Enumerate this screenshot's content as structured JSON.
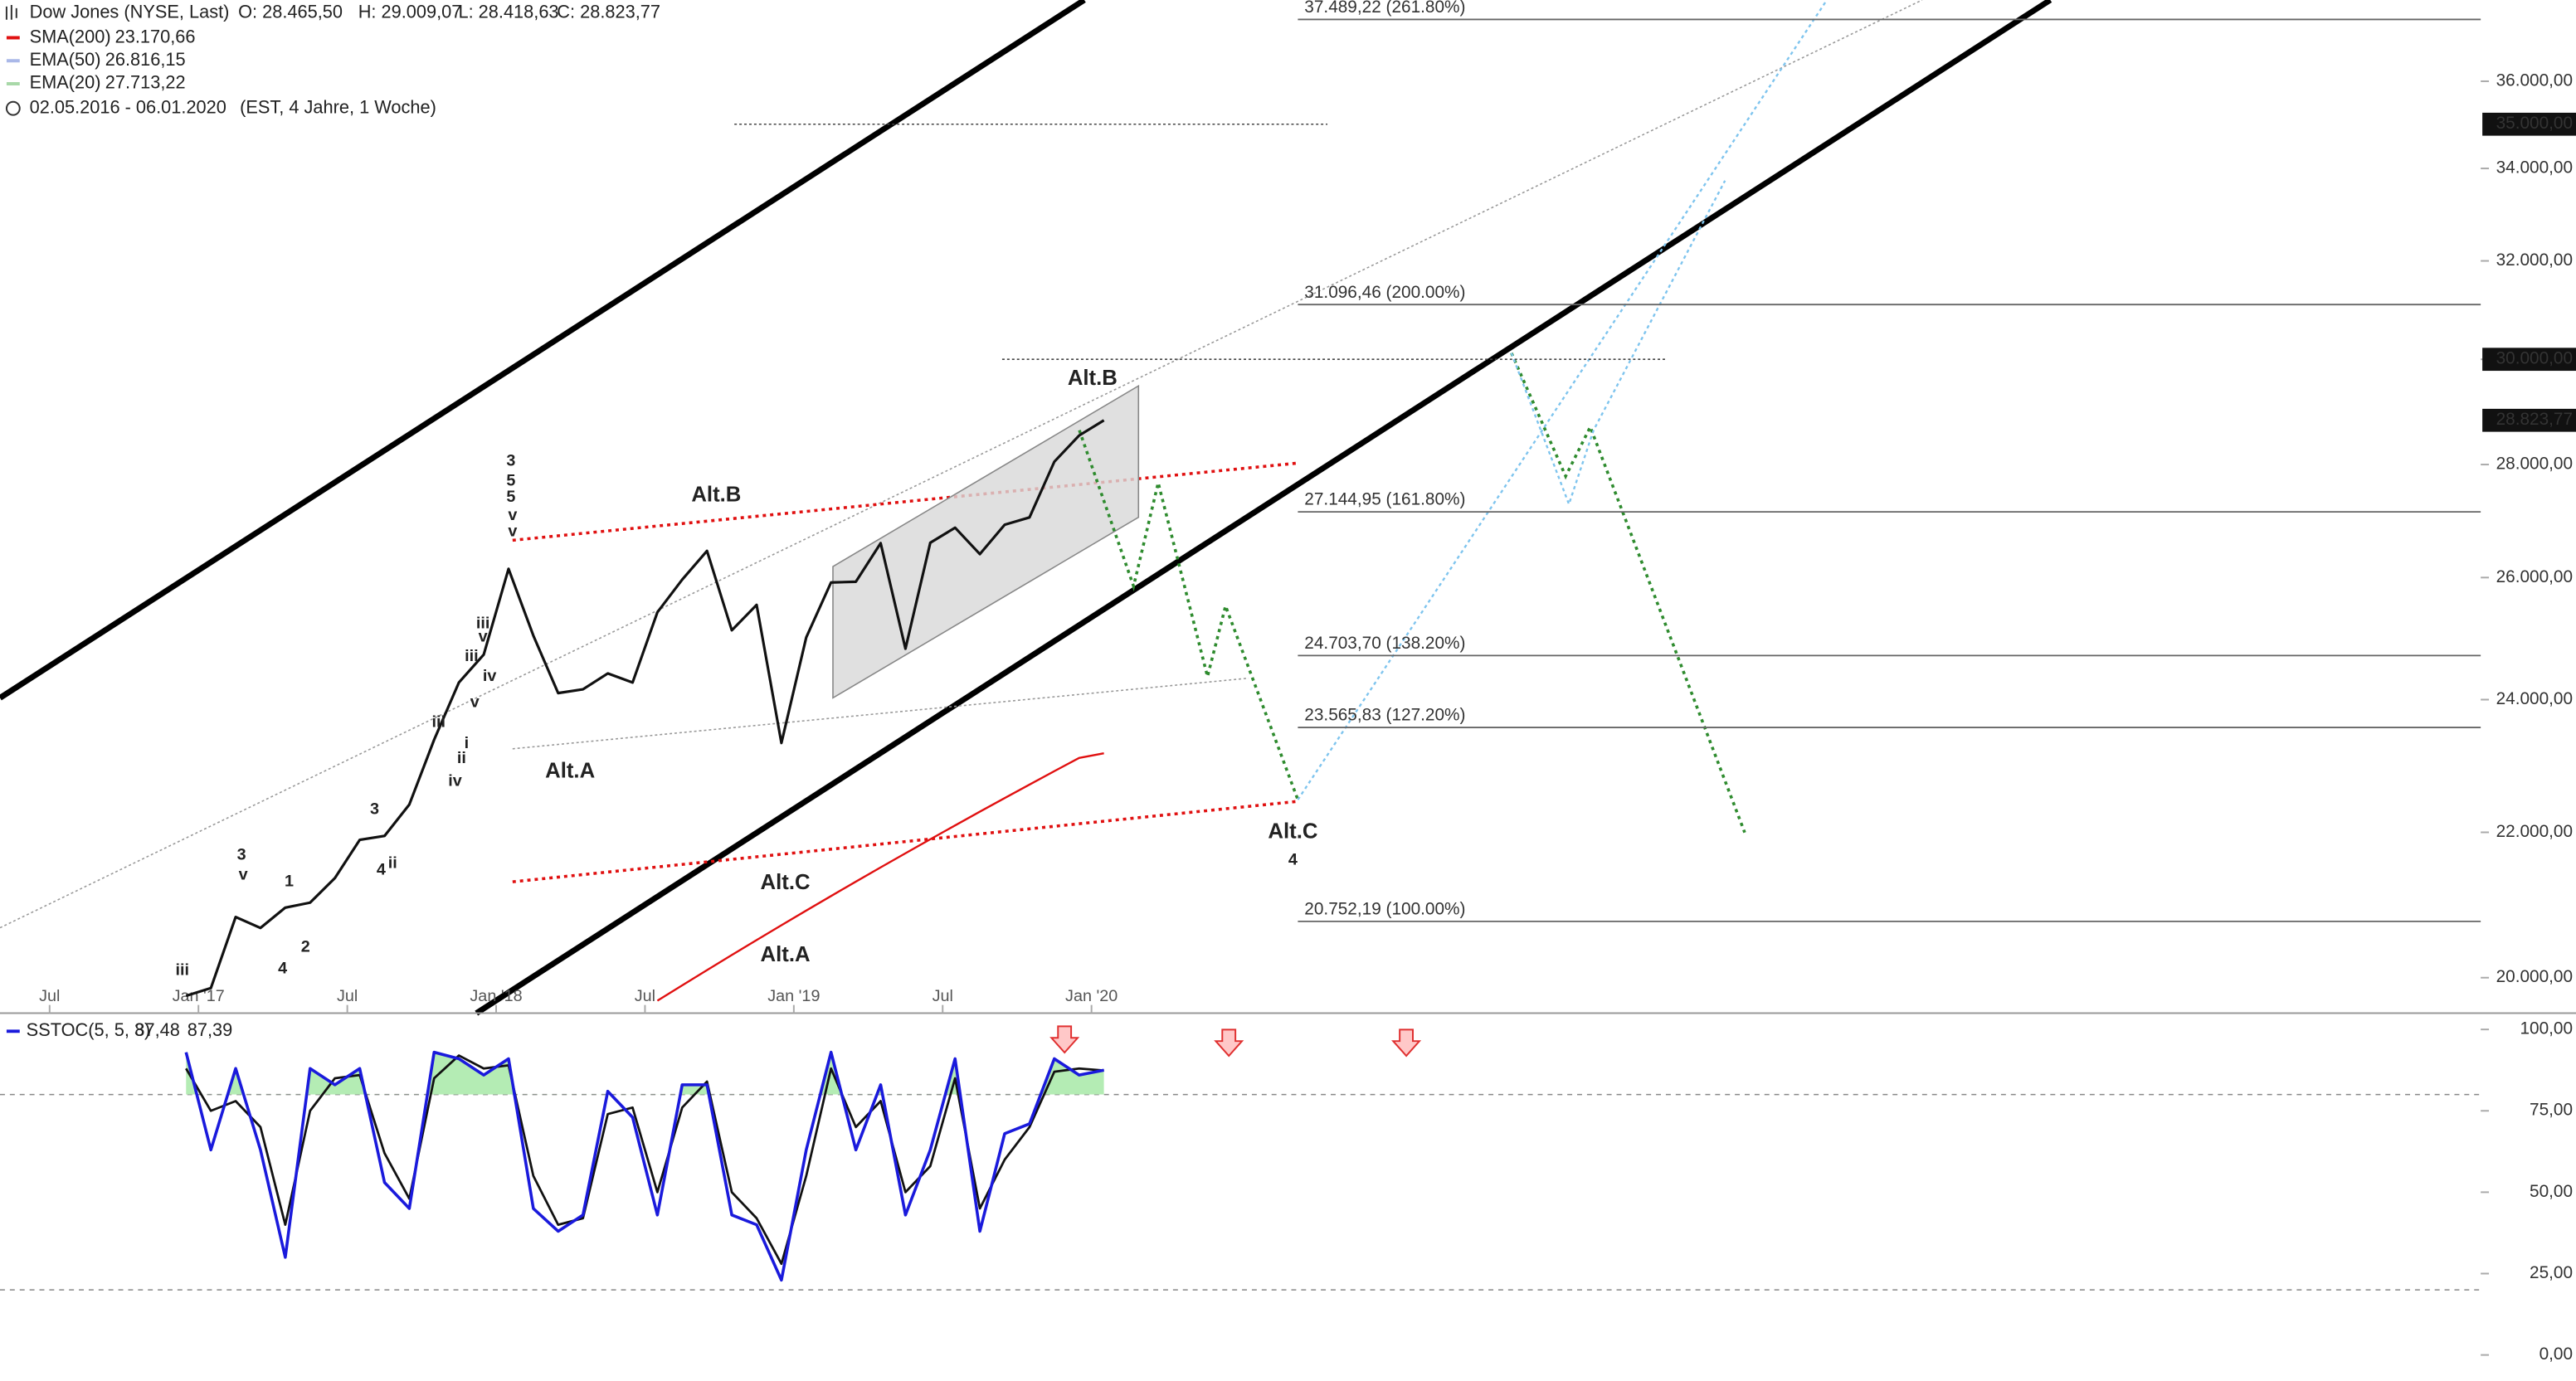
{
  "chart_data": [
    {
      "type": "line",
      "log_scale": true,
      "ohlc": [
        "O: 28.465,50",
        "H: 29.009,07",
        "L: 28.418,63",
        "C: 28.823,77"
      ],
      "date_range": "02.05.2016 - 06.01.2020",
      "range_note": "(EST, 4 Jahre, 1 Woche)",
      "xlim": [
        "2016-05",
        "2024-09"
      ],
      "xticks": [
        {
          "value": "2016-07",
          "label": "Jul"
        },
        {
          "value": "2017-01",
          "label": "Jan '17"
        },
        {
          "value": "2017-07",
          "label": "Jul"
        },
        {
          "value": "2018-01",
          "label": "Jan '18"
        },
        {
          "value": "2018-07",
          "label": "Jul"
        },
        {
          "value": "2019-01",
          "label": "Jan '19"
        },
        {
          "value": "2019-07",
          "label": "Jul"
        },
        {
          "value": "2020-01",
          "label": "Jan '20"
        }
      ],
      "ylim": [
        19540,
        37970
      ],
      "yticks": [
        {
          "value": 20000,
          "label": "20.000,00"
        },
        {
          "value": 22000,
          "label": "22.000,00"
        },
        {
          "value": 24000,
          "label": "24.000,00"
        },
        {
          "value": 26000,
          "label": "26.000,00"
        },
        {
          "value": 28000,
          "label": "28.000,00"
        },
        {
          "value": 30000,
          "label": "30.000,00"
        },
        {
          "value": 32000,
          "label": "32.000,00"
        },
        {
          "value": 34000,
          "label": "34.000,00"
        },
        {
          "value": 36000,
          "label": "36.000,00"
        }
      ],
      "x": [
        "2016-12",
        "2017-01",
        "2017-02",
        "2017-03",
        "2017-04",
        "2017-05",
        "2017-06",
        "2017-07",
        "2017-08",
        "2017-09",
        "2017-10",
        "2017-11",
        "2017-12",
        "2018-01",
        "2018-02",
        "2018-03",
        "2018-04",
        "2018-05",
        "2018-06",
        "2018-07",
        "2018-08",
        "2018-09",
        "2018-10",
        "2018-11",
        "2018-12",
        "2019-01",
        "2019-02",
        "2019-03",
        "2019-04",
        "2019-05",
        "2019-06",
        "2019-07",
        "2019-08",
        "2019-09",
        "2019-10",
        "2019-11",
        "2019-12",
        "2020-01"
      ],
      "series": [
        {
          "name": "Dow Jones (NYSE, Last)",
          "color": "#111111",
          "values": [
            19763,
            19864,
            20812,
            20663,
            20940,
            21009,
            21350,
            21891,
            21948,
            22405,
            23377,
            24272,
            24719,
            26149,
            25029,
            24103,
            24163,
            24416,
            24271,
            25415,
            25965,
            26458,
            25116,
            25538,
            23327,
            24999,
            25916,
            25929,
            26593,
            24815,
            26600,
            26864,
            26403,
            26917,
            27046,
            28051,
            28538,
            28823.77
          ]
        },
        {
          "name": "SMA(200)",
          "value_label": "23.170,66",
          "color": "#e01010",
          "values": [
            null,
            null,
            null,
            null,
            null,
            null,
            null,
            null,
            null,
            null,
            null,
            null,
            null,
            null,
            null,
            null,
            null,
            null,
            null,
            19700,
            19900,
            20100,
            20300,
            20500,
            20700,
            20900,
            21100,
            21300,
            21500,
            21700,
            21900,
            22100,
            22300,
            22500,
            22700,
            22900,
            23100,
            23170.66
          ]
        }
      ],
      "indicators": [
        {
          "name": "EMA(50)",
          "value_label": "26.816,15",
          "color": "#aab8e8"
        },
        {
          "name": "EMA(20)",
          "value_label": "27.713,22",
          "color": "#a8d8a8"
        }
      ],
      "levels": [
        {
          "value": 37489.22,
          "label": "37.489,22 (261.80%)"
        },
        {
          "value": 31096.46,
          "label": "31.096,46 (200.00%)"
        },
        {
          "value": 27144.95,
          "label": "27.144,95 (161.80%)"
        },
        {
          "value": 24703.7,
          "label": "24.703,70 (138.20%)"
        },
        {
          "value": 23565.83,
          "label": "23.565,83 (127.20%)"
        },
        {
          "value": 20752.19,
          "label": "20.752,19 (100.00%)"
        }
      ],
      "price_markers": [
        {
          "value": 35000,
          "label": "35.000,00"
        },
        {
          "value": 30000,
          "label": "30.000,00"
        },
        {
          "value": 28823.77,
          "label": "28.823,77"
        }
      ],
      "annotations": [
        {
          "text": "Alt.B",
          "color": "#111111"
        },
        {
          "text": "Alt.A",
          "color": "#111111"
        },
        {
          "text": "Alt.C",
          "color": "#111111"
        },
        {
          "text": "Alt.B",
          "color": "#2e8b2e"
        },
        {
          "text": "Alt.C",
          "color": "#2e8b2e"
        },
        {
          "text": "4",
          "color": "#e020c0"
        },
        {
          "text": "Alt.A",
          "color": "#2e8b2e"
        },
        {
          "text": "3",
          "color": "#e020c0"
        },
        {
          "text": "5",
          "color": "#2e8b2e"
        },
        {
          "text": "5",
          "color": "#111111"
        },
        {
          "text": "v",
          "color": "#2020d0"
        },
        {
          "text": "v",
          "color": "#2e8b2e"
        },
        {
          "text": "3",
          "color": "#2e8b2e"
        },
        {
          "text": "v",
          "color": "#111111"
        },
        {
          "text": "1",
          "color": "#111111"
        },
        {
          "text": "2",
          "color": "#111111"
        },
        {
          "text": "4",
          "color": "#2e8b2e"
        },
        {
          "text": "3",
          "color": "#111111"
        },
        {
          "text": "4",
          "color": "#111111"
        },
        {
          "text": "ii",
          "color": "#2020d0"
        },
        {
          "text": "iii",
          "color": "#111111"
        },
        {
          "text": "iii",
          "color": "#2020d0"
        },
        {
          "text": "iv",
          "color": "#2020d0"
        },
        {
          "text": "ii",
          "color": "#2e8b2e"
        },
        {
          "text": "i",
          "color": "#a020c0"
        },
        {
          "text": "iii",
          "color": "#a020c0"
        },
        {
          "text": "v",
          "color": "#a020c0"
        },
        {
          "text": "iv",
          "color": "#2e8b2e"
        },
        {
          "text": "iii",
          "color": "#2e8b2e"
        },
        {
          "text": "v",
          "color": "#a020c0"
        }
      ]
    },
    {
      "type": "line",
      "xlim": [
        "2016-05",
        "2024-09"
      ],
      "ylim": [
        -8,
        105
      ],
      "yticks": [
        {
          "value": 0,
          "label": "0,00"
        },
        {
          "value": 25,
          "label": "25,00"
        },
        {
          "value": 50,
          "label": "50,00"
        },
        {
          "value": 75,
          "label": "75,00"
        },
        {
          "value": 100,
          "label": "100,00"
        }
      ],
      "reference_lines": [
        80,
        20
      ],
      "fill_above": 80,
      "fill_color": "#b4ecb4",
      "x": [
        "2016-12",
        "2017-01",
        "2017-02",
        "2017-03",
        "2017-04",
        "2017-05",
        "2017-06",
        "2017-07",
        "2017-08",
        "2017-09",
        "2017-10",
        "2017-11",
        "2017-12",
        "2018-01",
        "2018-02",
        "2018-03",
        "2018-04",
        "2018-05",
        "2018-06",
        "2018-07",
        "2018-08",
        "2018-09",
        "2018-10",
        "2018-11",
        "2018-12",
        "2019-01",
        "2019-02",
        "2019-03",
        "2019-04",
        "2019-05",
        "2019-06",
        "2019-07",
        "2019-08",
        "2019-09",
        "2019-10",
        "2019-11",
        "2019-12",
        "2020-01"
      ],
      "series": [
        {
          "name": "SSTOC(5, 5, 3)",
          "value_label": "87,48",
          "color": "#1a1adc",
          "values": [
            93,
            63,
            88,
            63,
            30,
            88,
            83,
            88,
            53,
            45,
            93,
            91,
            86,
            91,
            45,
            38,
            43,
            81,
            73,
            43,
            83,
            83,
            43,
            40,
            23,
            63,
            93,
            63,
            83,
            43,
            63,
            91,
            38,
            68,
            71,
            91,
            86,
            87.48
          ]
        },
        {
          "value_label": "87,39",
          "color": "#111111",
          "values": [
            88,
            75,
            78,
            70,
            40,
            75,
            85,
            86,
            62,
            48,
            85,
            92,
            88,
            89,
            55,
            40,
            42,
            74,
            76,
            50,
            76,
            84,
            50,
            42,
            28,
            55,
            88,
            70,
            78,
            50,
            58,
            85,
            45,
            60,
            70,
            87,
            88,
            87.39
          ]
        }
      ]
    }
  ]
}
